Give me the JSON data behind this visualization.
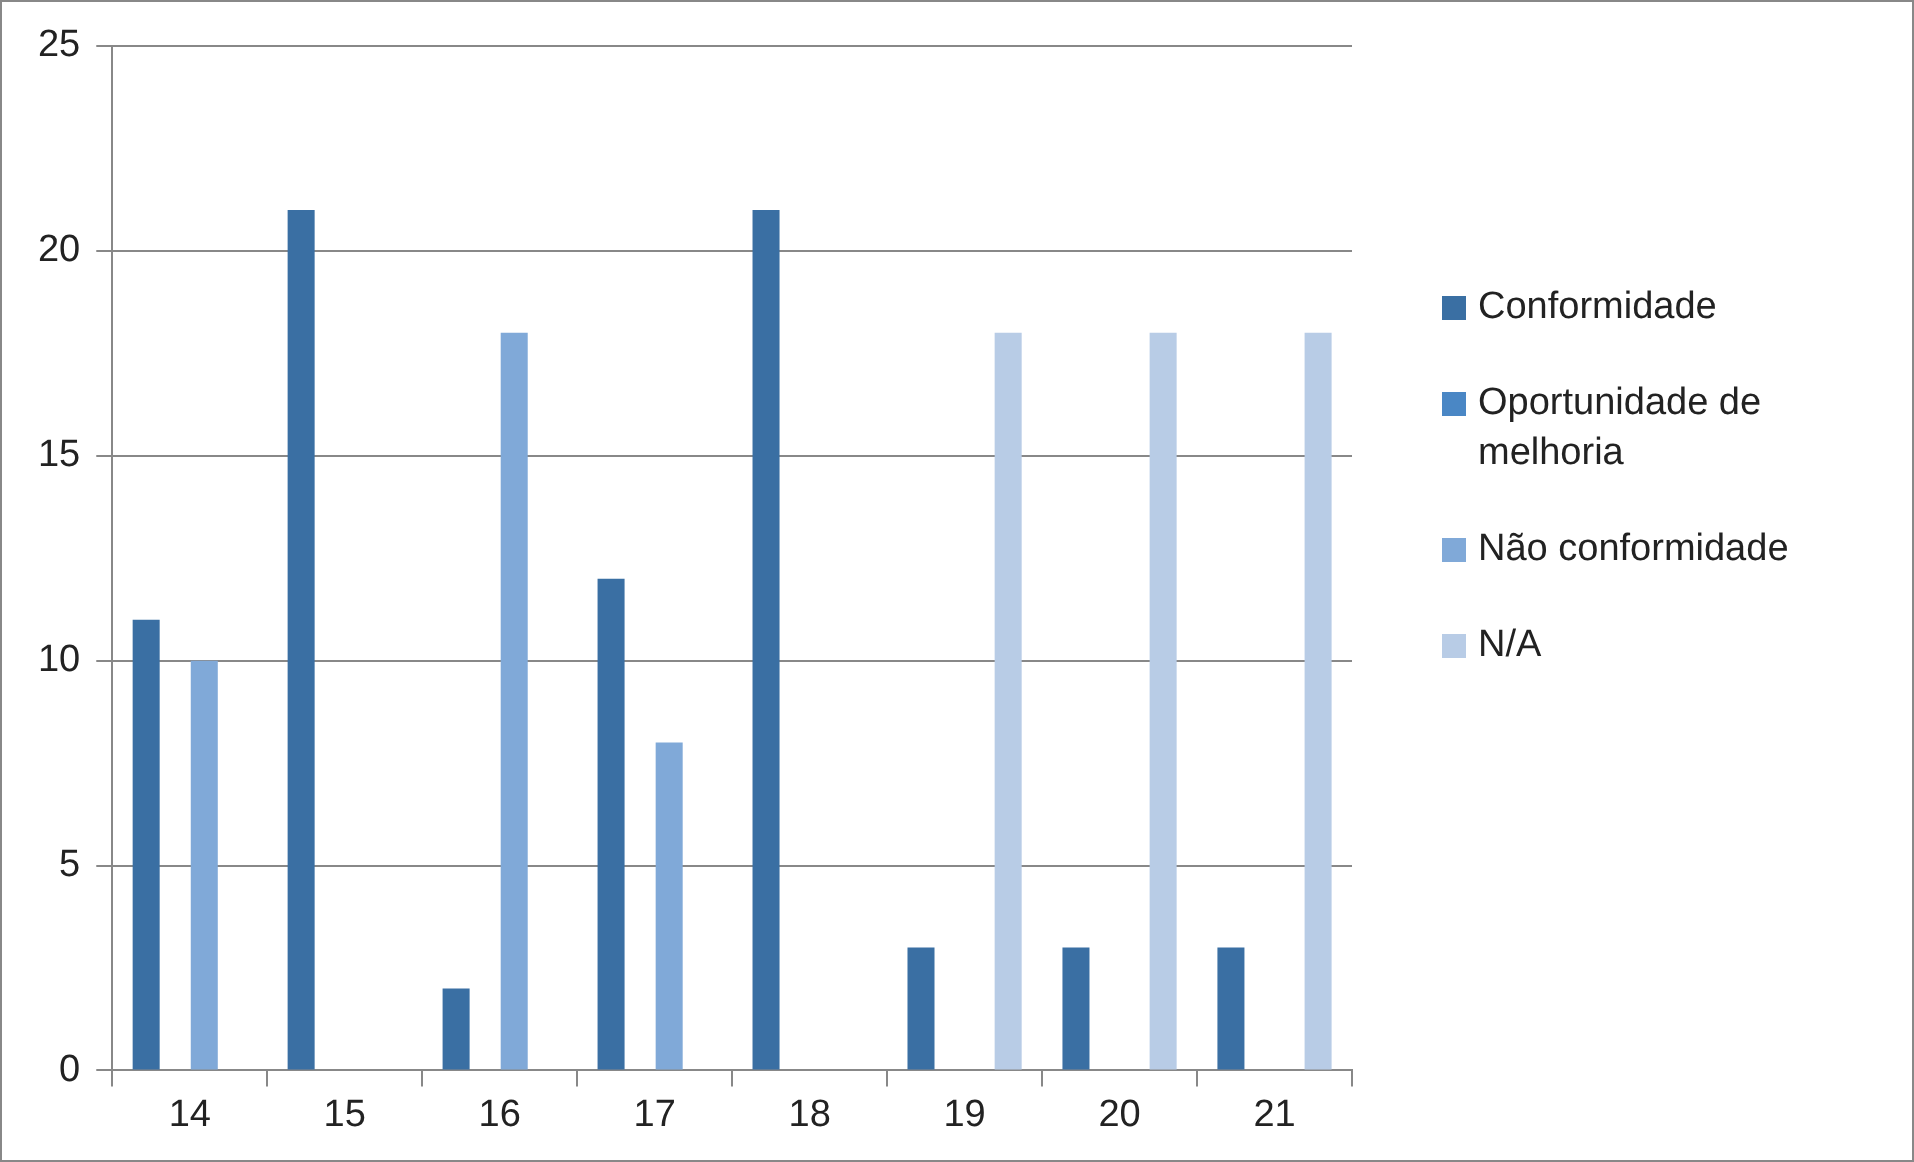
{
  "chart_data": {
    "type": "bar",
    "categories": [
      "14",
      "15",
      "16",
      "17",
      "18",
      "19",
      "20",
      "21"
    ],
    "series": [
      {
        "name": "Conformidade",
        "color": "#3a6fa3",
        "values": [
          11,
          21,
          2,
          12,
          21,
          3,
          3,
          3
        ]
      },
      {
        "name": "Oportunidade de melhoria",
        "color": "#4a87c5",
        "values": [
          0,
          0,
          0,
          0,
          0,
          0,
          0,
          0
        ]
      },
      {
        "name": "Não conformidade",
        "color": "#80a9d8",
        "values": [
          10,
          0,
          18,
          8,
          0,
          0,
          0,
          0
        ]
      },
      {
        "name": "N/A",
        "color": "#b8cce6",
        "values": [
          0,
          0,
          0,
          0,
          0,
          18,
          18,
          18
        ]
      }
    ],
    "ylim": [
      0,
      25
    ],
    "yticks": [
      0,
      5,
      10,
      15,
      20,
      25
    ],
    "grid": "y",
    "legend": "right"
  }
}
